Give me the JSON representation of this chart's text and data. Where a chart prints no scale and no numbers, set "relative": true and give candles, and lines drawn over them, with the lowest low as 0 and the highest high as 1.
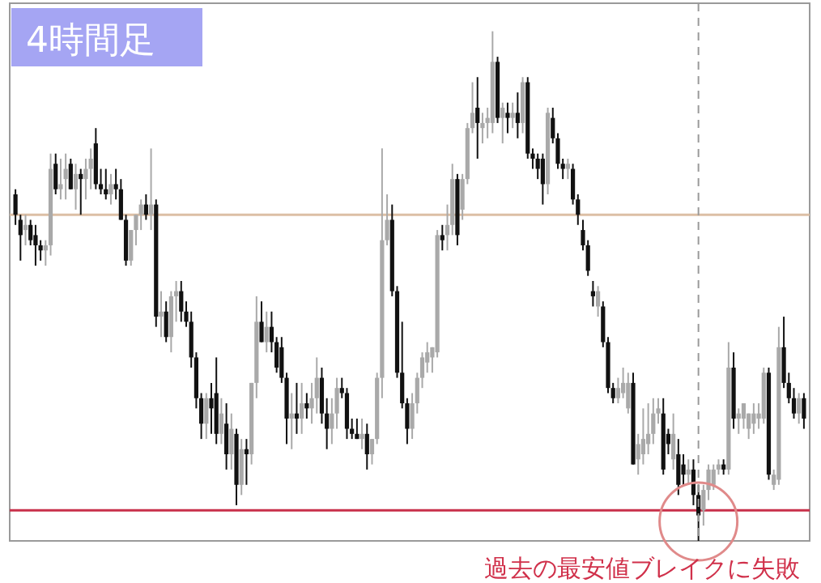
{
  "chart_data": {
    "type": "candlestick",
    "title": "4時間足",
    "relative": true,
    "annotations": [
      "過去の最安値ブレイクに失敗"
    ],
    "ref_lines": [
      {
        "axis": "y",
        "value": 0.64,
        "color": "#dcbfa5"
      },
      {
        "axis": "y",
        "value": 0.06,
        "color": "#c8304a"
      }
    ],
    "categories": [
      null,
      null,
      null,
      null,
      null,
      null,
      null,
      null,
      null,
      null,
      null,
      null,
      null,
      null,
      null,
      null,
      null,
      null,
      null,
      null,
      null,
      null,
      null,
      null,
      null,
      null,
      null,
      null,
      null,
      null,
      null,
      null,
      null,
      null,
      null,
      null,
      null,
      null,
      null,
      null,
      null,
      null,
      null,
      null,
      null,
      null,
      null,
      null,
      null,
      null,
      null,
      null,
      null,
      null,
      null,
      null,
      null,
      null,
      null,
      null,
      null,
      null,
      null,
      null,
      null,
      null,
      null,
      null,
      null,
      null,
      null,
      null,
      null,
      null,
      null,
      null,
      null,
      null,
      null,
      null,
      null,
      null,
      null,
      null,
      null,
      null,
      null,
      null,
      null,
      null,
      null,
      null,
      null,
      null,
      null,
      null,
      null,
      null,
      null,
      null,
      null,
      null,
      null,
      null,
      null,
      null,
      null,
      null,
      null,
      null,
      null,
      null,
      null,
      null,
      null,
      null,
      null,
      null,
      null,
      null,
      null,
      null,
      null,
      null,
      null,
      null,
      null,
      null,
      null,
      null,
      null,
      null,
      null,
      null,
      null,
      null,
      null,
      null,
      null,
      null,
      null,
      null,
      null,
      null,
      null,
      null,
      null,
      null,
      null,
      null,
      null,
      null,
      null,
      null,
      null,
      null,
      null,
      null
    ],
    "ohlc": [
      [
        0.68,
        0.69,
        0.62,
        0.64
      ],
      [
        0.63,
        0.64,
        0.55,
        0.6
      ],
      [
        0.61,
        0.64,
        0.58,
        0.62
      ],
      [
        0.62,
        0.63,
        0.58,
        0.59
      ],
      [
        0.6,
        0.62,
        0.54,
        0.58
      ],
      [
        0.58,
        0.59,
        0.55,
        0.57
      ],
      [
        0.57,
        0.59,
        0.54,
        0.58
      ],
      [
        0.58,
        0.76,
        0.56,
        0.73
      ],
      [
        0.74,
        0.76,
        0.68,
        0.69
      ],
      [
        0.69,
        0.75,
        0.67,
        0.7
      ],
      [
        0.71,
        0.76,
        0.67,
        0.73
      ],
      [
        0.74,
        0.75,
        0.69,
        0.69
      ],
      [
        0.69,
        0.74,
        0.65,
        0.72
      ],
      [
        0.72,
        0.73,
        0.64,
        0.71
      ],
      [
        0.71,
        0.75,
        0.67,
        0.73
      ],
      [
        0.73,
        0.77,
        0.69,
        0.75
      ],
      [
        0.78,
        0.81,
        0.69,
        0.7
      ],
      [
        0.7,
        0.73,
        0.68,
        0.69
      ],
      [
        0.69,
        0.73,
        0.67,
        0.68
      ],
      [
        0.68,
        0.72,
        0.66,
        0.7
      ],
      [
        0.7,
        0.73,
        0.67,
        0.69
      ],
      [
        0.69,
        0.71,
        0.63,
        0.63
      ],
      [
        0.63,
        0.64,
        0.54,
        0.55
      ],
      [
        0.55,
        0.61,
        0.54,
        0.61
      ],
      [
        0.61,
        0.64,
        0.58,
        0.64
      ],
      [
        0.64,
        0.67,
        0.61,
        0.66
      ],
      [
        0.66,
        0.68,
        0.63,
        0.64
      ],
      [
        0.64,
        0.77,
        0.61,
        0.66
      ],
      [
        0.66,
        0.67,
        0.42,
        0.44
      ],
      [
        0.44,
        0.49,
        0.4,
        0.45
      ],
      [
        0.45,
        0.47,
        0.39,
        0.4
      ],
      [
        0.4,
        0.49,
        0.37,
        0.48
      ],
      [
        0.48,
        0.51,
        0.43,
        0.49
      ],
      [
        0.49,
        0.51,
        0.43,
        0.45
      ],
      [
        0.45,
        0.47,
        0.42,
        0.43
      ],
      [
        0.43,
        0.45,
        0.34,
        0.36
      ],
      [
        0.36,
        0.37,
        0.26,
        0.28
      ],
      [
        0.28,
        0.29,
        0.2,
        0.23
      ],
      [
        0.23,
        0.29,
        0.2,
        0.28
      ],
      [
        0.28,
        0.31,
        0.21,
        0.26
      ],
      [
        0.29,
        0.36,
        0.19,
        0.21
      ],
      [
        0.21,
        0.28,
        0.19,
        0.25
      ],
      [
        0.23,
        0.27,
        0.14,
        0.17
      ],
      [
        0.17,
        0.25,
        0.14,
        0.22
      ],
      [
        0.21,
        0.22,
        0.07,
        0.11
      ],
      [
        0.11,
        0.2,
        0.09,
        0.18
      ],
      [
        0.18,
        0.2,
        0.11,
        0.17
      ],
      [
        0.17,
        0.31,
        0.15,
        0.31
      ],
      [
        0.31,
        0.48,
        0.28,
        0.43
      ],
      [
        0.43,
        0.47,
        0.39,
        0.39
      ],
      [
        0.39,
        0.45,
        0.37,
        0.42
      ],
      [
        0.42,
        0.45,
        0.37,
        0.39
      ],
      [
        0.39,
        0.4,
        0.33,
        0.34
      ],
      [
        0.38,
        0.4,
        0.31,
        0.32
      ],
      [
        0.32,
        0.33,
        0.19,
        0.24
      ],
      [
        0.24,
        0.29,
        0.18,
        0.25
      ],
      [
        0.25,
        0.31,
        0.21,
        0.24
      ],
      [
        0.24,
        0.31,
        0.21,
        0.27
      ],
      [
        0.27,
        0.29,
        0.24,
        0.26
      ],
      [
        0.26,
        0.31,
        0.23,
        0.28
      ],
      [
        0.28,
        0.36,
        0.25,
        0.32
      ],
      [
        0.32,
        0.34,
        0.23,
        0.25
      ],
      [
        0.25,
        0.28,
        0.18,
        0.22
      ],
      [
        0.22,
        0.28,
        0.19,
        0.25
      ],
      [
        0.25,
        0.32,
        0.22,
        0.3
      ],
      [
        0.3,
        0.32,
        0.28,
        0.29
      ],
      [
        0.29,
        0.3,
        0.2,
        0.22
      ],
      [
        0.22,
        0.24,
        0.2,
        0.21
      ],
      [
        0.21,
        0.24,
        0.2,
        0.2
      ],
      [
        0.2,
        0.24,
        0.18,
        0.21
      ],
      [
        0.21,
        0.23,
        0.14,
        0.17
      ],
      [
        0.17,
        0.2,
        0.15,
        0.2
      ],
      [
        0.2,
        0.33,
        0.19,
        0.32
      ],
      [
        0.32,
        0.77,
        0.28,
        0.59
      ],
      [
        0.59,
        0.68,
        0.58,
        0.63
      ],
      [
        0.63,
        0.66,
        0.48,
        0.49
      ],
      [
        0.49,
        0.5,
        0.32,
        0.33
      ],
      [
        0.33,
        0.43,
        0.26,
        0.27
      ],
      [
        0.27,
        0.28,
        0.19,
        0.22
      ],
      [
        0.22,
        0.29,
        0.2,
        0.27
      ],
      [
        0.27,
        0.33,
        0.25,
        0.32
      ],
      [
        0.32,
        0.37,
        0.3,
        0.36
      ],
      [
        0.35,
        0.39,
        0.33,
        0.37
      ],
      [
        0.36,
        0.38,
        0.33,
        0.38
      ],
      [
        0.37,
        0.61,
        0.36,
        0.6
      ],
      [
        0.6,
        0.62,
        0.57,
        0.59
      ],
      [
        0.6,
        0.66,
        0.57,
        0.62
      ],
      [
        0.62,
        0.74,
        0.6,
        0.71
      ],
      [
        0.71,
        0.72,
        0.58,
        0.6
      ],
      [
        0.65,
        0.72,
        0.63,
        0.71
      ],
      [
        0.71,
        0.82,
        0.7,
        0.81
      ],
      [
        0.81,
        0.9,
        0.8,
        0.84
      ],
      [
        0.85,
        0.91,
        0.75,
        0.82
      ],
      [
        0.81,
        0.84,
        0.78,
        0.82
      ],
      [
        0.82,
        0.85,
        0.79,
        0.83
      ],
      [
        0.82,
        1.0,
        0.8,
        0.94
      ],
      [
        0.94,
        0.95,
        0.82,
        0.83
      ],
      [
        0.83,
        0.86,
        0.78,
        0.85
      ],
      [
        0.84,
        0.86,
        0.8,
        0.83
      ],
      [
        0.83,
        0.86,
        0.81,
        0.84
      ],
      [
        0.84,
        0.88,
        0.79,
        0.82
      ],
      [
        0.82,
        0.91,
        0.8,
        0.9
      ],
      [
        0.9,
        0.91,
        0.75,
        0.76
      ],
      [
        0.76,
        0.77,
        0.73,
        0.75
      ],
      [
        0.75,
        0.76,
        0.71,
        0.73
      ],
      [
        0.75,
        0.76,
        0.66,
        0.7
      ],
      [
        0.7,
        0.85,
        0.68,
        0.84
      ],
      [
        0.83,
        0.85,
        0.78,
        0.79
      ],
      [
        0.79,
        0.8,
        0.73,
        0.74
      ],
      [
        0.74,
        0.75,
        0.71,
        0.73
      ],
      [
        0.73,
        0.75,
        0.71,
        0.74
      ],
      [
        0.73,
        0.74,
        0.66,
        0.67
      ],
      [
        0.67,
        0.68,
        0.62,
        0.64
      ],
      [
        0.61,
        0.63,
        0.57,
        0.58
      ],
      [
        0.58,
        0.59,
        0.52,
        0.53
      ],
      [
        0.49,
        0.51,
        0.46,
        0.48
      ],
      [
        0.46,
        0.5,
        0.44,
        0.49
      ],
      [
        0.46,
        0.47,
        0.38,
        0.39
      ],
      [
        0.39,
        0.4,
        0.29,
        0.3
      ],
      [
        0.3,
        0.31,
        0.27,
        0.28
      ],
      [
        0.28,
        0.32,
        0.27,
        0.3
      ],
      [
        0.29,
        0.34,
        0.28,
        0.31
      ],
      [
        0.26,
        0.33,
        0.25,
        0.31
      ],
      [
        0.31,
        0.33,
        0.15,
        0.15
      ],
      [
        0.16,
        0.21,
        0.13,
        0.19
      ],
      [
        0.17,
        0.26,
        0.15,
        0.2
      ],
      [
        0.19,
        0.27,
        0.17,
        0.21
      ],
      [
        0.21,
        0.28,
        0.19,
        0.25
      ],
      [
        0.25,
        0.28,
        0.23,
        0.26
      ],
      [
        0.25,
        0.28,
        0.13,
        0.14
      ],
      [
        0.21,
        0.22,
        0.17,
        0.19
      ],
      [
        0.16,
        0.25,
        0.14,
        0.21
      ],
      [
        0.17,
        0.2,
        0.09,
        0.11
      ],
      [
        0.15,
        0.17,
        0.11,
        0.13
      ],
      [
        0.13,
        0.16,
        0.11,
        0.14
      ],
      [
        0.14,
        0.16,
        0.07,
        0.09
      ],
      [
        0.09,
        0.11,
        0.0,
        0.05
      ],
      [
        0.06,
        0.11,
        0.03,
        0.1
      ],
      [
        0.1,
        0.15,
        0.08,
        0.14
      ],
      [
        0.11,
        0.15,
        0.1,
        0.14
      ],
      [
        0.14,
        0.16,
        0.13,
        0.15
      ],
      [
        0.15,
        0.16,
        0.13,
        0.14
      ],
      [
        0.14,
        0.39,
        0.13,
        0.34
      ],
      [
        0.34,
        0.37,
        0.22,
        0.24
      ],
      [
        0.24,
        0.26,
        0.21,
        0.25
      ],
      [
        0.24,
        0.27,
        0.22,
        0.27
      ],
      [
        0.22,
        0.25,
        0.2,
        0.25
      ],
      [
        0.23,
        0.27,
        0.21,
        0.25
      ],
      [
        0.24,
        0.27,
        0.22,
        0.25
      ],
      [
        0.24,
        0.34,
        0.23,
        0.33
      ],
      [
        0.33,
        0.34,
        0.12,
        0.13
      ],
      [
        0.11,
        0.14,
        0.1,
        0.13
      ],
      [
        0.12,
        0.42,
        0.11,
        0.38
      ],
      [
        0.38,
        0.44,
        0.3,
        0.31
      ],
      [
        0.31,
        0.33,
        0.27,
        0.28
      ],
      [
        0.28,
        0.3,
        0.24,
        0.25
      ],
      [
        0.25,
        0.29,
        0.23,
        0.28
      ],
      [
        0.28,
        0.29,
        0.22,
        0.24
      ]
    ]
  }
}
